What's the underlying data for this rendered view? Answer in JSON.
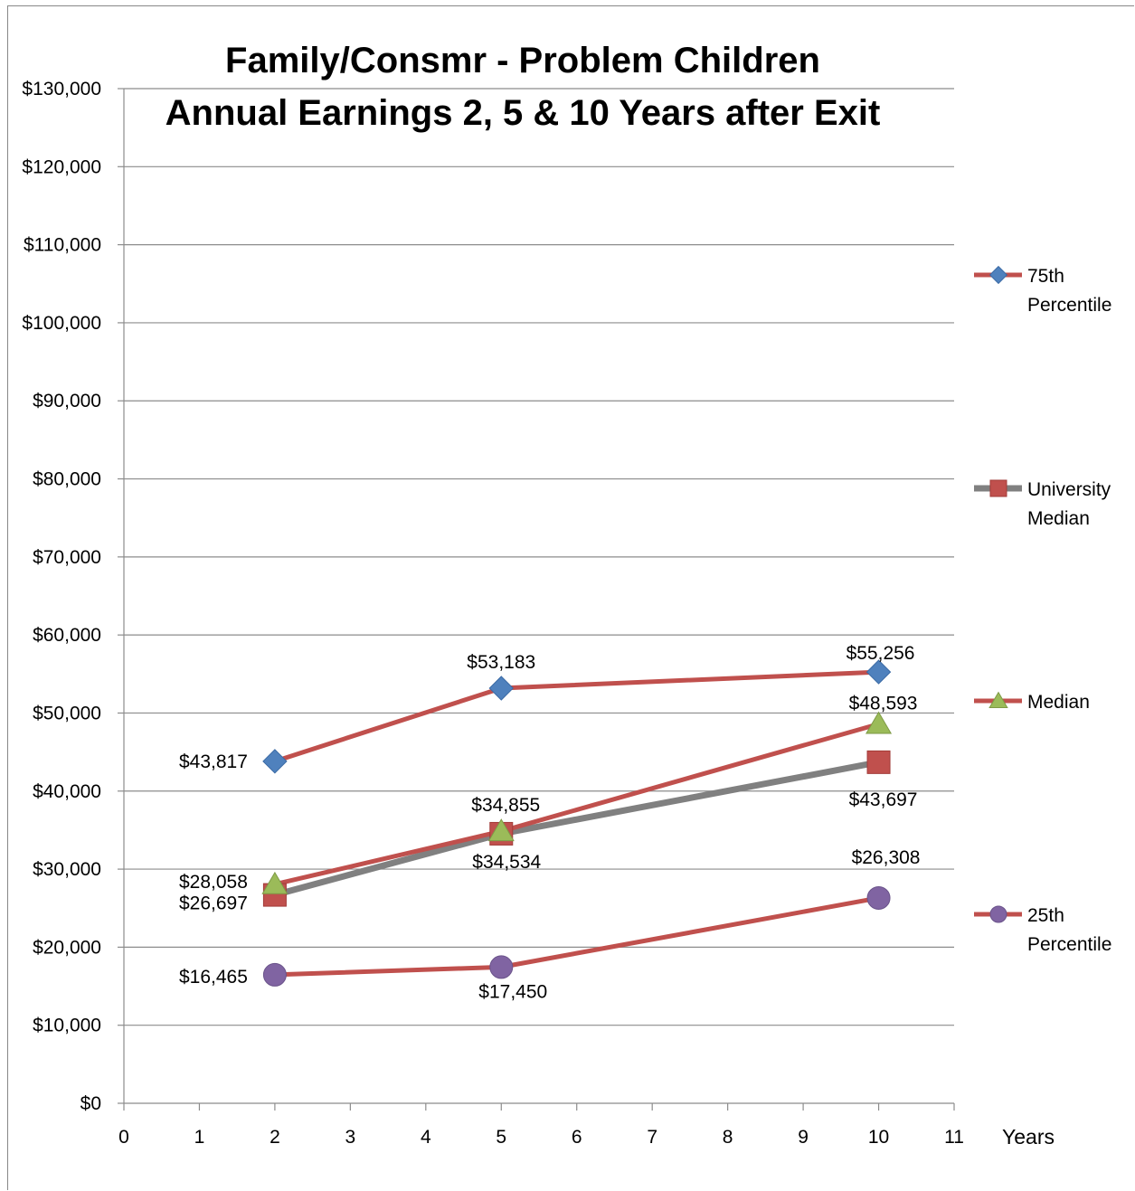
{
  "chart_data": {
    "type": "line",
    "title": "Family/Consmr - Problem Children",
    "subtitle": "Annual Earnings 2, 5 & 10 Years after Exit",
    "xlabel": "Years",
    "ylabel": "",
    "xlim": [
      0,
      11
    ],
    "ylim": [
      0,
      130000
    ],
    "xticks": [
      0,
      1,
      2,
      3,
      4,
      5,
      6,
      7,
      8,
      9,
      10,
      11
    ],
    "yticks": [
      0,
      10000,
      20000,
      30000,
      40000,
      50000,
      60000,
      70000,
      80000,
      90000,
      100000,
      110000,
      120000,
      130000
    ],
    "ytick_labels": [
      "$0",
      "$10,000",
      "$20,000",
      "$30,000",
      "$40,000",
      "$50,000",
      "$60,000",
      "$70,000",
      "$80,000",
      "$90,000",
      "$100,000",
      "$110,000",
      "$120,000",
      "$130,000"
    ],
    "grid": "horizontal",
    "legend_position": "right",
    "x": [
      2,
      5,
      10
    ],
    "series": [
      {
        "name": "75th Percentile",
        "legend_lines": [
          "75th",
          "Percentile"
        ],
        "values": [
          43817,
          53183,
          55256
        ],
        "labels": [
          "$43,817",
          "$53,183",
          "$55,256"
        ],
        "line_color": "#c0504d",
        "marker": "diamond",
        "marker_color": "#4f81bd"
      },
      {
        "name": "University Median",
        "legend_lines": [
          "University",
          "Median"
        ],
        "values": [
          26697,
          34534,
          43697
        ],
        "labels": [
          "$26,697",
          "$34,534",
          "$43,697"
        ],
        "line_color": "#808080",
        "marker": "square",
        "marker_color": "#c0504d"
      },
      {
        "name": "Median",
        "legend_lines": [
          "Median"
        ],
        "values": [
          28058,
          34855,
          48593
        ],
        "labels": [
          "$28,058",
          "$34,855",
          "$48,593"
        ],
        "line_color": "#c0504d",
        "marker": "triangle",
        "marker_color": "#9bbb59"
      },
      {
        "name": "25th Percentile",
        "legend_lines": [
          "25th",
          "Percentile"
        ],
        "values": [
          16465,
          17450,
          26308
        ],
        "labels": [
          "$16,465",
          "$17,450",
          "$26,308"
        ],
        "line_color": "#c0504d",
        "marker": "circle",
        "marker_color": "#8064a2"
      }
    ]
  }
}
